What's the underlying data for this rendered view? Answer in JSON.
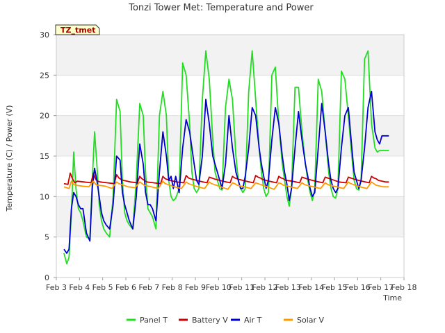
{
  "chart_data": {
    "type": "line",
    "title": "Tonzi Tower Met: Temperature and Power",
    "xlabel": "Time",
    "ylabel": "Temperature (C) / Power (V)",
    "badge": "TZ_tmet",
    "xlim": [
      3,
      18
    ],
    "ylim": [
      0,
      30
    ],
    "x_ticks": [
      3,
      4,
      5,
      6,
      7,
      8,
      9,
      10,
      11,
      12,
      13,
      14,
      15,
      16,
      17,
      18
    ],
    "x_tick_labels": [
      "Feb 3",
      "Feb 4",
      "Feb 5",
      "Feb 6",
      "Feb 7",
      "Feb 8",
      "Feb 9",
      "Feb 10",
      "Feb 11",
      "Feb 12",
      "Feb 13",
      "Feb 14",
      "Feb 15",
      "Feb 16",
      "Feb 17",
      "Feb 18"
    ],
    "y_ticks": [
      0,
      5,
      10,
      15,
      20,
      25,
      30
    ],
    "y_tick_labels": [
      "0",
      "5",
      "10",
      "15",
      "20",
      "25",
      "30"
    ],
    "grid": "horizontal bands",
    "legend_position": "bottom",
    "series": [
      {
        "name": "Panel T",
        "color": "#22dd22",
        "x": [
          3.33,
          3.45,
          3.55,
          3.65,
          3.75,
          3.85,
          3.95,
          4.05,
          4.15,
          4.3,
          4.45,
          4.55,
          4.65,
          4.75,
          4.85,
          4.95,
          5.05,
          5.15,
          5.3,
          5.45,
          5.6,
          5.75,
          5.85,
          5.95,
          6.05,
          6.15,
          6.3,
          6.45,
          6.6,
          6.75,
          6.85,
          6.95,
          7.05,
          7.15,
          7.3,
          7.45,
          7.6,
          7.75,
          7.85,
          7.95,
          8.05,
          8.15,
          8.3,
          8.45,
          8.6,
          8.75,
          8.85,
          8.95,
          9.05,
          9.15,
          9.3,
          9.45,
          9.6,
          9.75,
          9.85,
          9.95,
          10.05,
          10.15,
          10.3,
          10.45,
          10.6,
          10.75,
          10.85,
          10.95,
          11.05,
          11.15,
          11.3,
          11.45,
          11.6,
          11.75,
          11.85,
          11.95,
          12.05,
          12.15,
          12.3,
          12.45,
          12.6,
          12.75,
          12.85,
          12.95,
          13.05,
          13.15,
          13.3,
          13.45,
          13.6,
          13.75,
          13.85,
          13.95,
          14.05,
          14.15,
          14.3,
          14.45,
          14.6,
          14.75,
          14.85,
          14.95,
          15.05,
          15.15,
          15.3,
          15.45,
          15.6,
          15.75,
          15.85,
          15.95,
          16.05,
          16.15,
          16.3,
          16.45,
          16.6,
          16.75,
          16.85,
          16.95,
          17.05,
          17.15,
          17.25,
          17.35
        ],
        "y": [
          3.0,
          1.7,
          2.5,
          8.0,
          15.5,
          11.0,
          8.5,
          8.0,
          7.0,
          5.0,
          4.8,
          12.0,
          18.0,
          14.0,
          9.0,
          7.0,
          6.0,
          5.5,
          5.0,
          10.0,
          22.0,
          20.5,
          12.0,
          8.0,
          7.0,
          6.5,
          6.0,
          12.0,
          21.5,
          20.0,
          13.0,
          8.5,
          8.0,
          7.5,
          6.0,
          20.0,
          23.0,
          20.0,
          12.0,
          10.0,
          9.5,
          9.8,
          11.0,
          26.5,
          25.0,
          19.0,
          13.0,
          11.0,
          10.5,
          11.0,
          22.0,
          28.0,
          24.5,
          17.0,
          13.0,
          12.0,
          11.0,
          10.8,
          21.0,
          24.5,
          22.0,
          15.0,
          12.0,
          11.0,
          10.5,
          11.0,
          23.0,
          28.0,
          22.0,
          16.0,
          13.0,
          11.0,
          10.0,
          10.5,
          25.0,
          26.0,
          19.0,
          14.0,
          12.0,
          10.0,
          8.8,
          11.0,
          23.5,
          23.5,
          18.0,
          14.0,
          12.0,
          10.5,
          9.5,
          11.0,
          24.5,
          23.0,
          18.0,
          13.0,
          11.0,
          10.0,
          9.8,
          11.0,
          25.5,
          24.5,
          20.0,
          15.0,
          12.0,
          11.0,
          10.8,
          12.0,
          27.0,
          28.0,
          19.0,
          16.0,
          15.5,
          15.7,
          15.7,
          15.7,
          15.7,
          15.7
        ]
      },
      {
        "name": "Battery V",
        "color": "#cc0000",
        "x": [
          3.33,
          3.5,
          3.6,
          3.7,
          3.8,
          3.9,
          4.2,
          4.5,
          4.6,
          4.7,
          4.8,
          4.9,
          5.2,
          5.5,
          5.6,
          5.7,
          5.8,
          5.9,
          6.2,
          6.5,
          6.6,
          6.7,
          6.8,
          6.9,
          7.2,
          7.5,
          7.6,
          7.7,
          7.8,
          7.9,
          8.2,
          8.5,
          8.6,
          8.7,
          8.8,
          8.9,
          9.2,
          9.5,
          9.6,
          9.7,
          9.8,
          9.9,
          10.2,
          10.5,
          10.6,
          10.7,
          10.8,
          10.9,
          11.2,
          11.5,
          11.6,
          11.7,
          11.8,
          11.9,
          12.2,
          12.5,
          12.6,
          12.7,
          12.8,
          12.9,
          13.2,
          13.5,
          13.6,
          13.7,
          13.8,
          13.9,
          14.2,
          14.5,
          14.6,
          14.7,
          14.8,
          14.9,
          15.2,
          15.5,
          15.6,
          15.7,
          15.8,
          15.9,
          16.2,
          16.5,
          16.6,
          16.7,
          16.8,
          16.9,
          17.2,
          17.35
        ],
        "y": [
          11.6,
          11.5,
          12.9,
          12.2,
          11.7,
          11.9,
          11.8,
          11.7,
          12.9,
          12.1,
          11.9,
          11.8,
          11.7,
          11.6,
          12.7,
          12.3,
          12.1,
          12.0,
          11.8,
          11.7,
          12.5,
          12.2,
          12.0,
          11.8,
          11.7,
          11.6,
          12.5,
          12.2,
          12.1,
          12.0,
          11.8,
          11.7,
          12.6,
          12.3,
          12.2,
          12.1,
          11.9,
          11.7,
          12.4,
          12.3,
          12.2,
          12.1,
          11.9,
          11.7,
          12.5,
          12.3,
          12.2,
          12.1,
          11.9,
          11.7,
          12.6,
          12.4,
          12.3,
          12.1,
          11.9,
          11.7,
          12.5,
          12.3,
          12.2,
          12.0,
          11.9,
          11.7,
          12.4,
          12.3,
          12.2,
          12.1,
          11.9,
          11.7,
          12.4,
          12.3,
          12.2,
          12.1,
          11.8,
          11.7,
          12.4,
          12.3,
          12.2,
          12.1,
          11.9,
          11.7,
          12.5,
          12.3,
          12.2,
          12.0,
          11.8,
          11.8
        ]
      },
      {
        "name": "Air T",
        "color": "#0000cc",
        "x": [
          3.33,
          3.45,
          3.55,
          3.65,
          3.75,
          3.85,
          3.95,
          4.05,
          4.15,
          4.3,
          4.45,
          4.55,
          4.65,
          4.75,
          4.85,
          4.95,
          5.05,
          5.15,
          5.3,
          5.45,
          5.6,
          5.75,
          5.85,
          5.95,
          6.05,
          6.15,
          6.3,
          6.45,
          6.6,
          6.75,
          6.85,
          6.95,
          7.05,
          7.15,
          7.3,
          7.45,
          7.6,
          7.75,
          7.85,
          7.95,
          8.05,
          8.15,
          8.3,
          8.45,
          8.6,
          8.75,
          8.85,
          8.95,
          9.05,
          9.15,
          9.3,
          9.45,
          9.6,
          9.75,
          9.85,
          9.95,
          10.05,
          10.15,
          10.3,
          10.45,
          10.6,
          10.75,
          10.85,
          10.95,
          11.05,
          11.15,
          11.3,
          11.45,
          11.6,
          11.75,
          11.85,
          11.95,
          12.05,
          12.15,
          12.3,
          12.45,
          12.6,
          12.75,
          12.85,
          12.95,
          13.05,
          13.15,
          13.3,
          13.45,
          13.6,
          13.75,
          13.85,
          13.95,
          14.05,
          14.15,
          14.3,
          14.45,
          14.6,
          14.75,
          14.85,
          14.95,
          15.05,
          15.15,
          15.3,
          15.45,
          15.6,
          15.75,
          15.85,
          15.95,
          16.05,
          16.15,
          16.3,
          16.45,
          16.6,
          16.75,
          16.85,
          16.95,
          17.05,
          17.15,
          17.25,
          17.35
        ],
        "y": [
          3.5,
          3.0,
          3.5,
          8.5,
          10.5,
          10.0,
          9.0,
          8.5,
          8.5,
          5.5,
          4.5,
          11.0,
          13.5,
          12.0,
          10.0,
          8.0,
          7.0,
          6.5,
          6.0,
          9.0,
          15.0,
          14.5,
          10.5,
          9.0,
          8.0,
          7.0,
          6.0,
          10.0,
          16.5,
          14.0,
          10.5,
          9.0,
          9.0,
          8.5,
          7.0,
          13.0,
          18.0,
          15.0,
          12.0,
          12.5,
          11.0,
          12.5,
          10.5,
          16.0,
          19.5,
          18.0,
          16.0,
          14.0,
          12.0,
          11.5,
          15.0,
          22.0,
          19.0,
          15.0,
          14.0,
          13.0,
          12.0,
          11.0,
          14.0,
          20.0,
          16.0,
          13.0,
          12.0,
          11.0,
          11.0,
          12.5,
          16.0,
          21.0,
          20.0,
          16.0,
          14.0,
          12.5,
          11.0,
          12.0,
          17.0,
          21.0,
          19.0,
          15.0,
          13.0,
          11.5,
          9.5,
          11.0,
          16.0,
          20.5,
          17.0,
          14.0,
          12.5,
          11.0,
          10.0,
          10.5,
          16.0,
          21.5,
          18.0,
          14.0,
          12.0,
          11.0,
          10.5,
          11.0,
          16.0,
          20.0,
          21.0,
          16.0,
          13.0,
          12.0,
          11.0,
          12.0,
          16.0,
          21.0,
          23.0,
          18.0,
          17.0,
          16.5,
          17.5,
          17.5,
          17.5,
          17.5
        ]
      },
      {
        "name": "Solar V",
        "color": "#ff9900",
        "x": [
          3.33,
          3.55,
          3.65,
          3.75,
          3.85,
          4.1,
          4.4,
          4.6,
          4.7,
          4.8,
          5.1,
          5.4,
          5.6,
          5.7,
          5.8,
          6.1,
          6.4,
          6.6,
          6.7,
          6.8,
          7.1,
          7.4,
          7.6,
          7.7,
          7.8,
          8.1,
          8.4,
          8.6,
          8.7,
          8.8,
          9.1,
          9.4,
          9.6,
          9.7,
          9.8,
          10.1,
          10.4,
          10.6,
          10.7,
          10.8,
          11.1,
          11.4,
          11.6,
          11.7,
          11.8,
          12.1,
          12.4,
          12.6,
          12.7,
          12.8,
          13.1,
          13.4,
          13.6,
          13.7,
          13.8,
          14.1,
          14.4,
          14.6,
          14.7,
          14.8,
          15.1,
          15.4,
          15.6,
          15.7,
          15.8,
          16.1,
          16.4,
          16.6,
          16.7,
          16.8,
          17.1,
          17.35
        ],
        "y": [
          11.2,
          11.0,
          11.9,
          11.5,
          11.4,
          11.3,
          11.2,
          11.9,
          11.5,
          11.4,
          11.3,
          11.0,
          11.8,
          11.6,
          11.5,
          11.2,
          11.1,
          11.8,
          11.6,
          11.4,
          11.2,
          11.0,
          11.9,
          11.6,
          11.5,
          11.2,
          11.0,
          11.8,
          11.6,
          11.5,
          11.2,
          11.0,
          11.8,
          11.6,
          11.5,
          11.2,
          10.9,
          11.7,
          11.6,
          11.4,
          11.2,
          11.0,
          11.7,
          11.6,
          11.5,
          11.2,
          10.9,
          11.7,
          11.6,
          11.4,
          11.2,
          11.0,
          11.7,
          11.5,
          11.4,
          11.2,
          11.0,
          11.7,
          11.5,
          11.4,
          11.2,
          11.0,
          11.8,
          11.6,
          11.5,
          11.2,
          11.0,
          11.8,
          11.6,
          11.4,
          11.2,
          11.2
        ]
      }
    ]
  }
}
